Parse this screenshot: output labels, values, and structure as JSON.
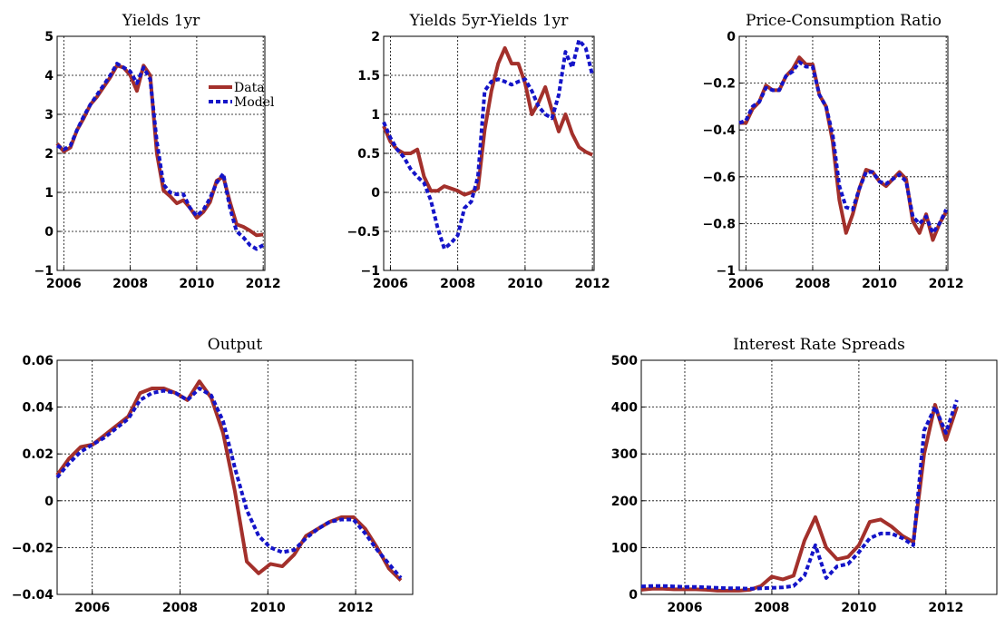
{
  "chart_data": [
    {
      "type": "line",
      "title": "Yields 1yr",
      "x": [
        2005.8,
        2006.0,
        2006.2,
        2006.4,
        2006.6,
        2006.8,
        2007.0,
        2007.2,
        2007.4,
        2007.6,
        2007.8,
        2008.0,
        2008.2,
        2008.4,
        2008.6,
        2008.8,
        2009.0,
        2009.2,
        2009.4,
        2009.6,
        2009.8,
        2010.0,
        2010.2,
        2010.4,
        2010.6,
        2010.8,
        2011.0,
        2011.2,
        2011.4,
        2011.6,
        2011.8,
        2012.0
      ],
      "series": [
        {
          "name": "Data",
          "color": "#a3302b",
          "linestyle": "solid",
          "values": [
            2.25,
            2.05,
            2.15,
            2.6,
            2.9,
            3.25,
            3.45,
            3.7,
            3.95,
            4.25,
            4.2,
            4.0,
            3.6,
            4.25,
            4.0,
            2.0,
            1.05,
            0.9,
            0.72,
            0.8,
            0.6,
            0.35,
            0.5,
            0.75,
            1.3,
            1.4,
            0.75,
            0.18,
            0.12,
            0.02,
            -0.1,
            -0.08
          ]
        },
        {
          "name": "Model",
          "color": "#1414c8",
          "linestyle": "dotted",
          "values": [
            2.2,
            2.1,
            2.2,
            2.6,
            2.95,
            3.25,
            3.5,
            3.75,
            4.0,
            4.3,
            4.2,
            4.1,
            3.8,
            4.2,
            3.9,
            2.3,
            1.2,
            1.0,
            0.95,
            0.95,
            0.6,
            0.4,
            0.55,
            0.85,
            1.25,
            1.48,
            0.6,
            0.0,
            -0.15,
            -0.35,
            -0.45,
            -0.35
          ]
        }
      ],
      "xlim": [
        2005.8,
        2012.05
      ],
      "xticks": [
        2006,
        2008,
        2010,
        2012
      ],
      "ylim": [
        -1,
        5
      ],
      "yticks": [
        {
          "value": -1,
          "label": "−1"
        },
        0,
        1,
        2,
        3,
        4,
        5
      ],
      "grid": true,
      "legend": "upper right"
    },
    {
      "type": "line",
      "title": "Yields 5yr-Yields 1yr",
      "x": [
        2005.8,
        2006.0,
        2006.2,
        2006.4,
        2006.6,
        2006.8,
        2007.0,
        2007.2,
        2007.4,
        2007.6,
        2007.8,
        2008.0,
        2008.2,
        2008.4,
        2008.6,
        2008.8,
        2009.0,
        2009.2,
        2009.4,
        2009.6,
        2009.8,
        2010.0,
        2010.2,
        2010.4,
        2010.6,
        2010.8,
        2011.0,
        2011.2,
        2011.4,
        2011.6,
        2011.8,
        2012.0
      ],
      "series": [
        {
          "color": "#a3302b",
          "linestyle": "solid",
          "values": [
            0.85,
            0.65,
            0.55,
            0.5,
            0.5,
            0.55,
            0.2,
            0.02,
            0.02,
            0.08,
            0.05,
            0.02,
            -0.03,
            0.0,
            0.05,
            0.8,
            1.3,
            1.65,
            1.85,
            1.65,
            1.65,
            1.4,
            1.0,
            1.15,
            1.35,
            1.05,
            0.78,
            1.0,
            0.75,
            0.58,
            0.52,
            0.48
          ]
        },
        {
          "color": "#1414c8",
          "linestyle": "dotted",
          "values": [
            0.9,
            0.7,
            0.55,
            0.45,
            0.3,
            0.2,
            0.12,
            -0.1,
            -0.45,
            -0.72,
            -0.65,
            -0.55,
            -0.2,
            -0.12,
            0.2,
            1.3,
            1.42,
            1.45,
            1.42,
            1.38,
            1.42,
            1.45,
            1.3,
            1.1,
            1.0,
            0.95,
            1.25,
            1.8,
            1.6,
            1.95,
            1.85,
            1.5
          ]
        }
      ],
      "xlim": [
        2005.8,
        2012.05
      ],
      "xticks": [
        2006,
        2008,
        2010,
        2012
      ],
      "ylim": [
        -1,
        2
      ],
      "yticks": [
        {
          "value": -1,
          "label": "−1"
        },
        {
          "value": -0.5,
          "label": "−0.5"
        },
        0,
        0.5,
        1,
        1.5,
        2
      ],
      "grid": true
    },
    {
      "type": "line",
      "title": "Price-Consumption Ratio",
      "x": [
        2005.8,
        2006.0,
        2006.2,
        2006.4,
        2006.6,
        2006.8,
        2007.0,
        2007.2,
        2007.4,
        2007.6,
        2007.8,
        2008.0,
        2008.2,
        2008.4,
        2008.6,
        2008.8,
        2009.0,
        2009.2,
        2009.4,
        2009.6,
        2009.8,
        2010.0,
        2010.2,
        2010.4,
        2010.6,
        2010.8,
        2011.0,
        2011.2,
        2011.4,
        2011.6,
        2011.8,
        2012.0
      ],
      "series": [
        {
          "color": "#a3302b",
          "linestyle": "solid",
          "values": [
            -0.37,
            -0.37,
            -0.31,
            -0.28,
            -0.21,
            -0.23,
            -0.23,
            -0.17,
            -0.14,
            -0.09,
            -0.12,
            -0.12,
            -0.25,
            -0.3,
            -0.45,
            -0.7,
            -0.84,
            -0.76,
            -0.65,
            -0.57,
            -0.58,
            -0.62,
            -0.64,
            -0.61,
            -0.58,
            -0.61,
            -0.79,
            -0.84,
            -0.76,
            -0.87,
            -0.8,
            -0.75
          ]
        },
        {
          "color": "#1414c8",
          "linestyle": "dotted",
          "values": [
            -0.37,
            -0.36,
            -0.3,
            -0.28,
            -0.22,
            -0.23,
            -0.23,
            -0.17,
            -0.15,
            -0.11,
            -0.13,
            -0.13,
            -0.25,
            -0.3,
            -0.42,
            -0.64,
            -0.73,
            -0.74,
            -0.65,
            -0.58,
            -0.58,
            -0.62,
            -0.63,
            -0.61,
            -0.59,
            -0.62,
            -0.77,
            -0.8,
            -0.77,
            -0.84,
            -0.8,
            -0.74
          ]
        }
      ],
      "xlim": [
        2005.8,
        2012.05
      ],
      "xticks": [
        2006,
        2008,
        2010,
        2012
      ],
      "ylim": [
        -1,
        0
      ],
      "yticks": [
        {
          "value": -1,
          "label": "−1"
        },
        {
          "value": -0.8,
          "label": "−0.8"
        },
        {
          "value": -0.6,
          "label": "−0.6"
        },
        {
          "value": -0.4,
          "label": "−0.4"
        },
        {
          "value": -0.2,
          "label": "−0.2"
        },
        0
      ],
      "grid": true
    },
    {
      "type": "line",
      "title": "Output",
      "x": [
        2005.2,
        2005.47,
        2005.74,
        2006.01,
        2006.28,
        2006.55,
        2006.82,
        2007.09,
        2007.36,
        2007.63,
        2007.9,
        2008.17,
        2008.44,
        2008.71,
        2008.98,
        2009.25,
        2009.52,
        2009.79,
        2010.06,
        2010.33,
        2010.6,
        2010.87,
        2011.14,
        2011.41,
        2011.68,
        2011.95,
        2012.22,
        2012.49,
        2012.76,
        2013.03
      ],
      "series": [
        {
          "color": "#a3302b",
          "linestyle": "solid",
          "values": [
            0.011,
            0.018,
            0.023,
            0.024,
            0.028,
            0.032,
            0.036,
            0.046,
            0.048,
            0.048,
            0.046,
            0.043,
            0.051,
            0.044,
            0.029,
            0.004,
            -0.026,
            -0.031,
            -0.027,
            -0.028,
            -0.023,
            -0.015,
            -0.012,
            -0.009,
            -0.007,
            -0.007,
            -0.012,
            -0.02,
            -0.029,
            -0.034
          ]
        },
        {
          "color": "#1414c8",
          "linestyle": "dotted",
          "values": [
            0.01,
            0.016,
            0.021,
            0.024,
            0.027,
            0.031,
            0.035,
            0.043,
            0.046,
            0.047,
            0.046,
            0.043,
            0.048,
            0.045,
            0.034,
            0.014,
            -0.004,
            -0.015,
            -0.02,
            -0.022,
            -0.021,
            -0.016,
            -0.012,
            -0.009,
            -0.008,
            -0.008,
            -0.014,
            -0.021,
            -0.027,
            -0.033
          ]
        }
      ],
      "xlim": [
        2005.2,
        2013.3
      ],
      "xticks": [
        2006,
        2008,
        2010,
        2012
      ],
      "ylim": [
        -0.04,
        0.06
      ],
      "yticks": [
        {
          "value": -0.04,
          "label": "−0.04"
        },
        {
          "value": -0.02,
          "label": "−0.02"
        },
        0,
        0.02,
        0.04,
        0.06
      ],
      "grid": true
    },
    {
      "type": "line",
      "title": "Interest Rate Spreads",
      "x": [
        2005.0,
        2005.25,
        2005.5,
        2005.75,
        2006.0,
        2006.25,
        2006.5,
        2006.75,
        2007.0,
        2007.25,
        2007.5,
        2007.75,
        2008.0,
        2008.25,
        2008.5,
        2008.75,
        2009.0,
        2009.25,
        2009.5,
        2009.75,
        2010.0,
        2010.25,
        2010.5,
        2010.75,
        2011.0,
        2011.25,
        2011.5,
        2011.75,
        2012.0,
        2012.25
      ],
      "series": [
        {
          "color": "#a3302b",
          "linestyle": "solid",
          "values": [
            10,
            12,
            12,
            11,
            11,
            11,
            10,
            8,
            8,
            8,
            10,
            18,
            38,
            32,
            40,
            115,
            165,
            100,
            75,
            80,
            105,
            155,
            160,
            145,
            125,
            112,
            300,
            405,
            330,
            400
          ]
        },
        {
          "color": "#1414c8",
          "linestyle": "dotted",
          "values": [
            17,
            18,
            18,
            17,
            16,
            16,
            15,
            14,
            13,
            13,
            12,
            13,
            14,
            15,
            18,
            40,
            105,
            35,
            60,
            65,
            90,
            120,
            130,
            130,
            120,
            105,
            350,
            400,
            345,
            415
          ]
        }
      ],
      "xlim": [
        2005,
        2013.17
      ],
      "xticks": [
        2006,
        2008,
        2010,
        2012
      ],
      "ylim": [
        0,
        500
      ],
      "yticks": [
        0,
        100,
        200,
        300,
        400,
        500
      ],
      "grid": true
    }
  ]
}
